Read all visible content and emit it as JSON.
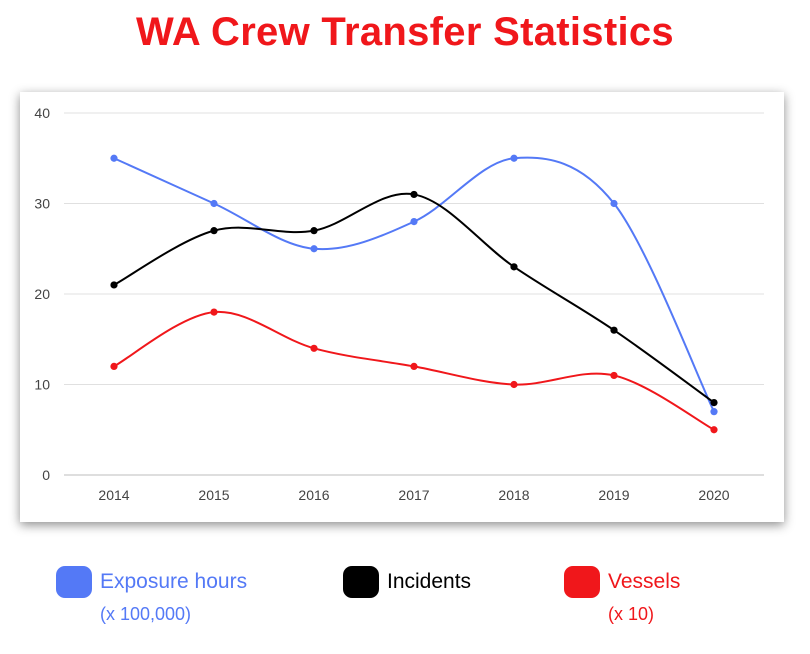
{
  "title": "WA Crew Transfer Statistics",
  "chart_data": {
    "type": "line",
    "smooth": true,
    "categories": [
      "2014",
      "2015",
      "2016",
      "2017",
      "2018",
      "2019",
      "2020"
    ],
    "ylim": [
      0,
      40
    ],
    "yticks": [
      0,
      10,
      20,
      30,
      40
    ],
    "grid": true,
    "legend_position": "bottom",
    "series": [
      {
        "name": "Exposure hours",
        "unit": "(x 100,000)",
        "color": "#5479f6",
        "values": [
          35,
          30,
          25,
          28,
          35,
          30,
          7
        ]
      },
      {
        "name": "Incidents",
        "unit": "",
        "color": "#000000",
        "values": [
          21,
          27,
          27,
          31,
          23,
          16,
          8
        ]
      },
      {
        "name": "Vessels",
        "unit": "(x 10)",
        "color": "#f0171b",
        "values": [
          12,
          18,
          14,
          12,
          10,
          11,
          5
        ]
      }
    ]
  }
}
